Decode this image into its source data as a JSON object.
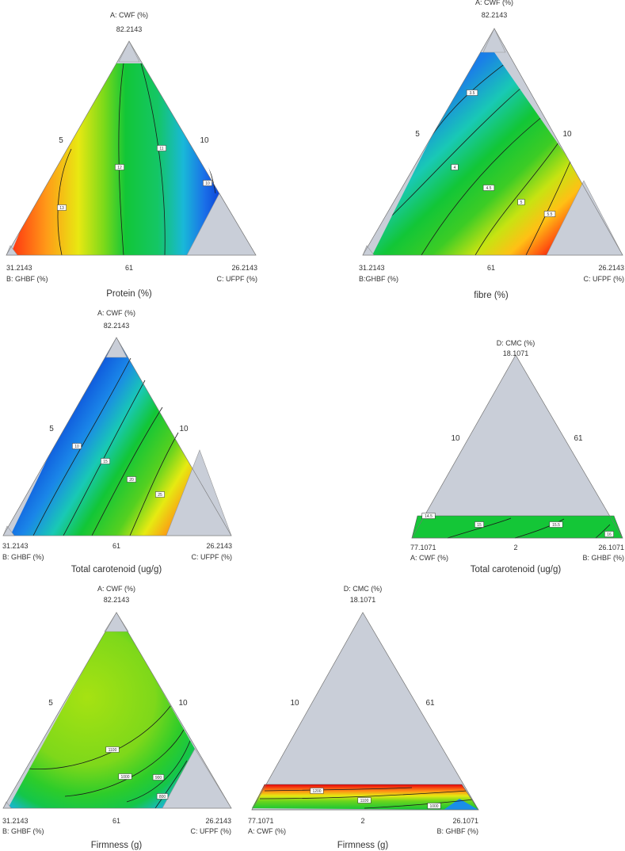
{
  "colors": {
    "grey_region": "#c9ced8",
    "contour_line": "#1a1a1a",
    "scale": [
      "#0b3fd6",
      "#1a8ee8",
      "#19c9b5",
      "#12c637",
      "#7bd91a",
      "#e6ea12",
      "#ffa818",
      "#ff3a10",
      "#e8000a"
    ]
  },
  "chart_data": [
    {
      "type": "heatmap",
      "title": "Protein (%)",
      "apex": {
        "name": "A: CWF (%)",
        "value": "82.2143"
      },
      "bottom_left": {
        "value": "31.2143",
        "name": "B: GHBF (%)"
      },
      "bottom_right": {
        "value": "26.2143",
        "name": "C: UFPF (%)"
      },
      "left_tick": "5",
      "right_tick": "10",
      "bottom_tick": "61",
      "contour_labels": [
        "13",
        "12",
        "11",
        "10"
      ]
    },
    {
      "type": "heatmap",
      "title": "fibre (%)",
      "apex": {
        "name": "A: CWF (%)",
        "value": "82.2143"
      },
      "bottom_left": {
        "value": "31.2143",
        "name": "B:GHBF (%)"
      },
      "bottom_right": {
        "value": "26.2143",
        "name": "C: UFPF (%)"
      },
      "left_tick": "5",
      "right_tick": "10",
      "bottom_tick": "61",
      "contour_labels": [
        "3.5",
        "4",
        "4.5",
        "5",
        "5.5"
      ]
    },
    {
      "type": "heatmap",
      "title": "Total carotenoid (ug/g)",
      "apex": {
        "name": "A: CWF (%)",
        "value": "82.2143"
      },
      "bottom_left": {
        "value": "31.2143",
        "name": "B: GHBF (%)"
      },
      "bottom_right": {
        "value": "26.2143",
        "name": "C: UFPF (%)"
      },
      "left_tick": "5",
      "right_tick": "10",
      "bottom_tick": "61",
      "contour_labels": [
        "10",
        "15",
        "20",
        "25"
      ]
    },
    {
      "type": "heatmap",
      "title": "Total carotenoid (ug/g)",
      "apex": {
        "name": "D: CMC (%)",
        "value": "18.1071"
      },
      "bottom_left": {
        "value": "77.1071",
        "name": "A: CWF (%)"
      },
      "bottom_right": {
        "value": "26.1071",
        "name": "B: GHBF (%)"
      },
      "left_tick": "10",
      "right_tick": "61",
      "bottom_tick": "2",
      "contour_labels": [
        "14.5",
        "15",
        "15.5",
        "16"
      ]
    },
    {
      "type": "heatmap",
      "title": "Firmness (g)",
      "apex": {
        "name": "A: CWF (%)",
        "value": "82.2143"
      },
      "bottom_left": {
        "value": "31.2143",
        "name": "B: GHBF (%)"
      },
      "bottom_right": {
        "value": "26.2143",
        "name": "C: UFPF (%)"
      },
      "left_tick": "5",
      "right_tick": "10",
      "bottom_tick": "61",
      "contour_labels": [
        "1100",
        "1000",
        "900",
        "800"
      ]
    },
    {
      "type": "heatmap",
      "title": "Firmness (g)",
      "apex": {
        "name": "D: CMC (%)",
        "value": "18.1071"
      },
      "bottom_left": {
        "value": "77.1071",
        "name": "A: CWF (%)"
      },
      "bottom_right": {
        "value": "26.1071",
        "name": "B: GHBF (%)"
      },
      "left_tick": "10",
      "right_tick": "61",
      "bottom_tick": "2",
      "contour_labels": [
        "1200",
        "1100",
        "1000"
      ]
    }
  ]
}
